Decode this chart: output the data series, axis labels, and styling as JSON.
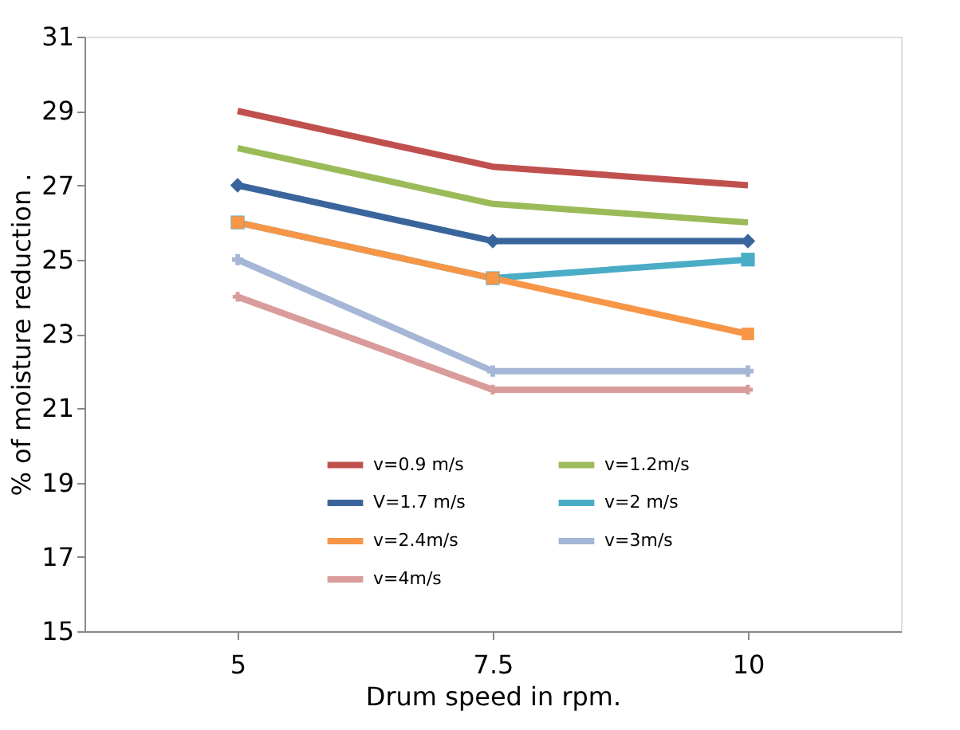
{
  "chart_data": {
    "type": "line",
    "xlabel": "Drum speed in rpm.",
    "ylabel": "% of moisture reduction .",
    "categories": [
      "5",
      "7.5",
      "10"
    ],
    "series": [
      {
        "name": "v=0.9 m/s",
        "color": "#c0504d",
        "values": [
          29,
          27.5,
          27
        ],
        "marker": "none"
      },
      {
        "name": "v=1.2m/s",
        "color": "#9bbb59",
        "values": [
          28,
          26.5,
          26
        ],
        "marker": "none"
      },
      {
        "name": "V=1.7 m/s",
        "color": "#3a659c",
        "values": [
          27,
          25.5,
          25.5
        ],
        "marker": "diamond"
      },
      {
        "name": "v=2 m/s",
        "color": "#4bacc6",
        "values": [
          26,
          24.5,
          25
        ],
        "marker": "square"
      },
      {
        "name": "v=2.4m/s",
        "color": "#f79646",
        "values": [
          26,
          24.5,
          23
        ],
        "marker": "square"
      },
      {
        "name": "v=3m/s",
        "color": "#a5b6d6",
        "values": [
          25,
          22,
          22
        ],
        "marker": "cross"
      },
      {
        "name": "v=4m/s",
        "color": "#d99c9a",
        "values": [
          24,
          21.5,
          21.5
        ],
        "marker": "cross"
      }
    ],
    "ylim": [
      15,
      31
    ],
    "yticks": [
      15,
      17,
      19,
      21,
      23,
      25,
      27,
      29,
      31
    ],
    "grid": false,
    "legend": "bottom",
    "line_style": "solid"
  }
}
